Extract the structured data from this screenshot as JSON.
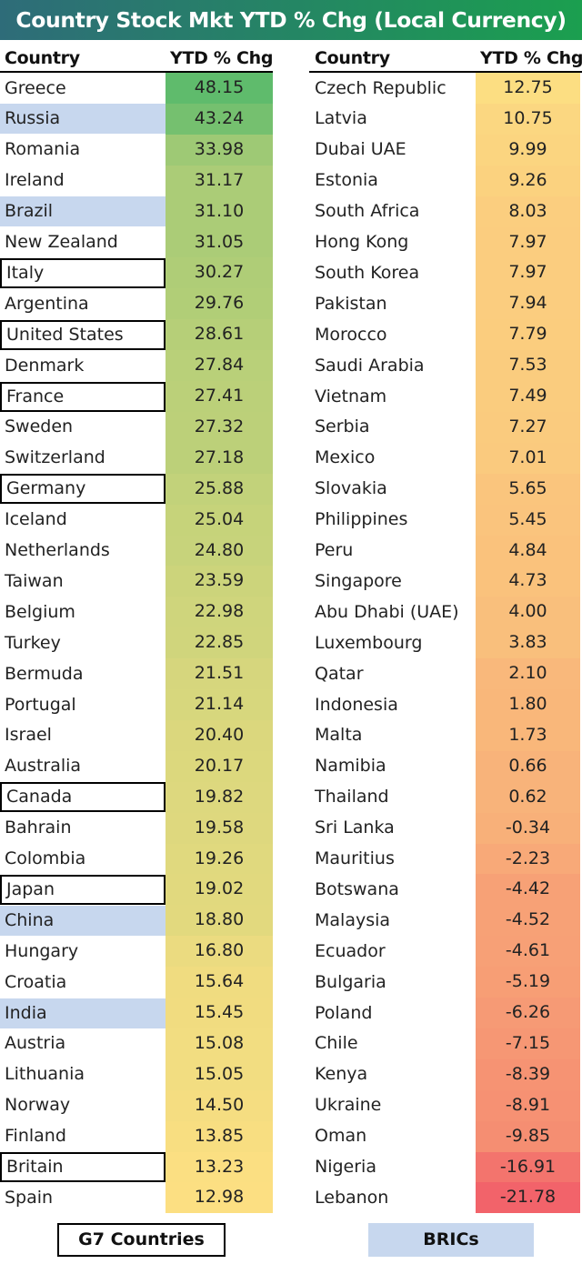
{
  "title": "Country Stock Mkt YTD % Chg (Local Currency)",
  "headers": {
    "country": "Country",
    "value": "YTD % Chg"
  },
  "legend": {
    "g7": "G7 Countries",
    "brics": "BRICs"
  },
  "colors": {
    "title_from": "#2e6c79",
    "title_to": "#1b9f4f",
    "high": "#5fbb6c",
    "mid": "#fcdf82",
    "low": "#f2636a",
    "bric_highlight": "#c7d7ee"
  },
  "chart_data": {
    "type": "table",
    "title": "Country Stock Mkt YTD % Chg (Local Currency)",
    "columns": [
      "Country",
      "YTD % Chg"
    ],
    "rows": [
      {
        "country": "Greece",
        "value": 48.15,
        "group": ""
      },
      {
        "country": "Russia",
        "value": 43.24,
        "group": "bric"
      },
      {
        "country": "Romania",
        "value": 33.98,
        "group": ""
      },
      {
        "country": "Ireland",
        "value": 31.17,
        "group": ""
      },
      {
        "country": "Brazil",
        "value": 31.1,
        "group": "bric"
      },
      {
        "country": "New Zealand",
        "value": 31.05,
        "group": ""
      },
      {
        "country": "Italy",
        "value": 30.27,
        "group": "g7"
      },
      {
        "country": "Argentina",
        "value": 29.76,
        "group": ""
      },
      {
        "country": "United States",
        "value": 28.61,
        "group": "g7"
      },
      {
        "country": "Denmark",
        "value": 27.84,
        "group": ""
      },
      {
        "country": "France",
        "value": 27.41,
        "group": "g7"
      },
      {
        "country": "Sweden",
        "value": 27.32,
        "group": ""
      },
      {
        "country": "Switzerland",
        "value": 27.18,
        "group": ""
      },
      {
        "country": "Germany",
        "value": 25.88,
        "group": "g7"
      },
      {
        "country": "Iceland",
        "value": 25.04,
        "group": ""
      },
      {
        "country": "Netherlands",
        "value": 24.8,
        "group": ""
      },
      {
        "country": "Taiwan",
        "value": 23.59,
        "group": ""
      },
      {
        "country": "Belgium",
        "value": 22.98,
        "group": ""
      },
      {
        "country": "Turkey",
        "value": 22.85,
        "group": ""
      },
      {
        "country": "Bermuda",
        "value": 21.51,
        "group": ""
      },
      {
        "country": "Portugal",
        "value": 21.14,
        "group": ""
      },
      {
        "country": "Israel",
        "value": 20.4,
        "group": ""
      },
      {
        "country": "Australia",
        "value": 20.17,
        "group": ""
      },
      {
        "country": "Canada",
        "value": 19.82,
        "group": "g7"
      },
      {
        "country": "Bahrain",
        "value": 19.58,
        "group": ""
      },
      {
        "country": "Colombia",
        "value": 19.26,
        "group": ""
      },
      {
        "country": "Japan",
        "value": 19.02,
        "group": "g7"
      },
      {
        "country": "China",
        "value": 18.8,
        "group": "bric"
      },
      {
        "country": "Hungary",
        "value": 16.8,
        "group": ""
      },
      {
        "country": "Croatia",
        "value": 15.64,
        "group": ""
      },
      {
        "country": "India",
        "value": 15.45,
        "group": "bric"
      },
      {
        "country": "Austria",
        "value": 15.08,
        "group": ""
      },
      {
        "country": "Lithuania",
        "value": 15.05,
        "group": ""
      },
      {
        "country": "Norway",
        "value": 14.5,
        "group": ""
      },
      {
        "country": "Finland",
        "value": 13.85,
        "group": ""
      },
      {
        "country": "Britain",
        "value": 13.23,
        "group": "g7"
      },
      {
        "country": "Spain",
        "value": 12.98,
        "group": ""
      },
      {
        "country": "Czech Republic",
        "value": 12.75,
        "group": ""
      },
      {
        "country": "Latvia",
        "value": 10.75,
        "group": ""
      },
      {
        "country": "Dubai UAE",
        "value": 9.99,
        "group": ""
      },
      {
        "country": "Estonia",
        "value": 9.26,
        "group": ""
      },
      {
        "country": "South Africa",
        "value": 8.03,
        "group": ""
      },
      {
        "country": "Hong Kong",
        "value": 7.97,
        "group": ""
      },
      {
        "country": "South Korea",
        "value": 7.97,
        "group": ""
      },
      {
        "country": "Pakistan",
        "value": 7.94,
        "group": ""
      },
      {
        "country": "Morocco",
        "value": 7.79,
        "group": ""
      },
      {
        "country": "Saudi Arabia",
        "value": 7.53,
        "group": ""
      },
      {
        "country": "Vietnam",
        "value": 7.49,
        "group": ""
      },
      {
        "country": "Serbia",
        "value": 7.27,
        "group": ""
      },
      {
        "country": "Mexico",
        "value": 7.01,
        "group": ""
      },
      {
        "country": "Slovakia",
        "value": 5.65,
        "group": ""
      },
      {
        "country": "Philippines",
        "value": 5.45,
        "group": ""
      },
      {
        "country": "Peru",
        "value": 4.84,
        "group": ""
      },
      {
        "country": "Singapore",
        "value": 4.73,
        "group": ""
      },
      {
        "country": "Abu Dhabi (UAE)",
        "value": 4.0,
        "group": ""
      },
      {
        "country": "Luxembourg",
        "value": 3.83,
        "group": ""
      },
      {
        "country": "Qatar",
        "value": 2.1,
        "group": ""
      },
      {
        "country": "Indonesia",
        "value": 1.8,
        "group": ""
      },
      {
        "country": "Malta",
        "value": 1.73,
        "group": ""
      },
      {
        "country": "Namibia",
        "value": 0.66,
        "group": ""
      },
      {
        "country": "Thailand",
        "value": 0.62,
        "group": ""
      },
      {
        "country": "Sri Lanka",
        "value": -0.34,
        "group": ""
      },
      {
        "country": "Mauritius",
        "value": -2.23,
        "group": ""
      },
      {
        "country": "Botswana",
        "value": -4.42,
        "group": ""
      },
      {
        "country": "Malaysia",
        "value": -4.52,
        "group": ""
      },
      {
        "country": "Ecuador",
        "value": -4.61,
        "group": ""
      },
      {
        "country": "Bulgaria",
        "value": -5.19,
        "group": ""
      },
      {
        "country": "Poland",
        "value": -6.26,
        "group": ""
      },
      {
        "country": "Chile",
        "value": -7.15,
        "group": ""
      },
      {
        "country": "Kenya",
        "value": -8.39,
        "group": ""
      },
      {
        "country": "Ukraine",
        "value": -8.91,
        "group": ""
      },
      {
        "country": "Oman",
        "value": -9.85,
        "group": ""
      },
      {
        "country": "Nigeria",
        "value": -16.91,
        "group": ""
      },
      {
        "country": "Lebanon",
        "value": -21.78,
        "group": ""
      }
    ]
  }
}
